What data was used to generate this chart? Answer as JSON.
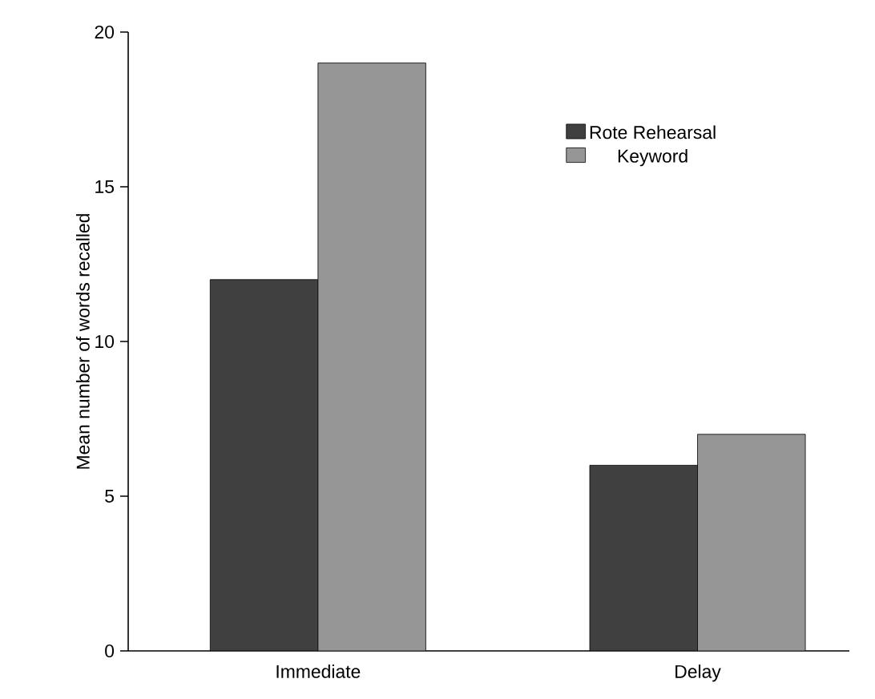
{
  "chart_data": {
    "type": "bar",
    "ylabel": "Mean number of words recalled",
    "categories": [
      "Immediate",
      "Delay"
    ],
    "series": [
      {
        "name": "Rote Rehearsal",
        "color": "#404040",
        "values": [
          12,
          6
        ]
      },
      {
        "name": "Keyword",
        "color": "#969696",
        "values": [
          19,
          7
        ]
      }
    ],
    "ylim": [
      0,
      20
    ],
    "yticks": [
      0,
      5,
      10,
      15,
      20
    ],
    "legend": "top right"
  }
}
